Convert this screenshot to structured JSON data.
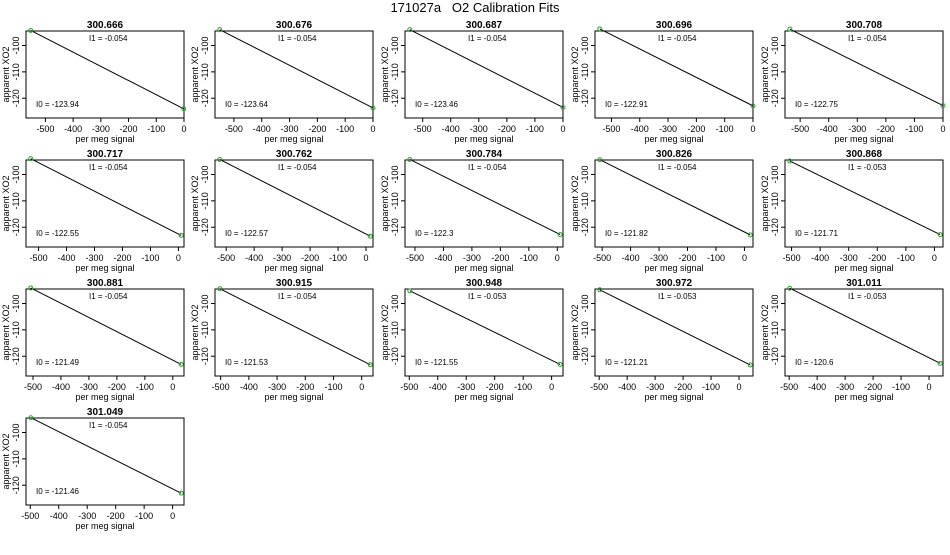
{
  "title": "171027a   O2 Calibration Fits",
  "xlabel": "per meg signal",
  "ylabel": "apparent XO2",
  "i0_prefix": "I0 =  ",
  "i1_prefix": "I1 =  ",
  "colors": {
    "line": "#000000",
    "point": "#2ca02c",
    "axis": "#000000"
  },
  "chart_data": [
    {
      "type": "scatter",
      "title": "300.666",
      "xlim": [
        -570,
        0
      ],
      "xticks": [
        -500,
        -400,
        -300,
        -200,
        -100,
        0
      ],
      "ylim": [
        -127.5,
        -94.5
      ],
      "yticks": [
        -100,
        -110,
        -120
      ],
      "i1": "-0.054",
      "i0": "-123.94",
      "points": [
        {
          "x": -553,
          "y": -94.3
        },
        {
          "x": -1,
          "y": -124.0
        }
      ]
    },
    {
      "type": "scatter",
      "title": "300.676",
      "xlim": [
        -568,
        0
      ],
      "xticks": [
        -500,
        -400,
        -300,
        -200,
        -100,
        0
      ],
      "ylim": [
        -127.5,
        -94.5
      ],
      "yticks": [
        -100,
        -110,
        -120
      ],
      "i1": "-0.054",
      "i0": "-123.64",
      "points": [
        {
          "x": -551,
          "y": -94.0
        },
        {
          "x": 0,
          "y": -123.7
        }
      ]
    },
    {
      "type": "scatter",
      "title": "300.687",
      "xlim": [
        -563,
        0
      ],
      "xticks": [
        -500,
        -400,
        -300,
        -200,
        -100,
        0
      ],
      "ylim": [
        -127.5,
        -94.5
      ],
      "yticks": [
        -100,
        -110,
        -120
      ],
      "i1": "-0.054",
      "i0": "-123.46",
      "points": [
        {
          "x": -546,
          "y": -94.0
        },
        {
          "x": 0,
          "y": -123.5
        }
      ]
    },
    {
      "type": "scatter",
      "title": "300.696",
      "xlim": [
        -558,
        0
      ],
      "xticks": [
        -500,
        -400,
        -300,
        -200,
        -100,
        0
      ],
      "ylim": [
        -127.5,
        -94.5
      ],
      "yticks": [
        -100,
        -110,
        -120
      ],
      "i1": "-0.054",
      "i0": "-122.91",
      "points": [
        {
          "x": -541,
          "y": -93.7
        },
        {
          "x": 0,
          "y": -122.9
        }
      ]
    },
    {
      "type": "scatter",
      "title": "300.708",
      "xlim": [
        -553,
        0
      ],
      "xticks": [
        -500,
        -400,
        -300,
        -200,
        -100,
        0
      ],
      "ylim": [
        -127.5,
        -94.5
      ],
      "yticks": [
        -100,
        -110,
        -120
      ],
      "i1": "-0.054",
      "i0": "-122.75",
      "points": [
        {
          "x": -536,
          "y": -93.8
        },
        {
          "x": 0,
          "y": -122.8
        }
      ]
    },
    {
      "type": "scatter",
      "title": "300.717",
      "xlim": [
        -545,
        20
      ],
      "xticks": [
        -500,
        -400,
        -300,
        -200,
        -100,
        0
      ],
      "ylim": [
        -127.5,
        -94.5
      ],
      "yticks": [
        -100,
        -110,
        -120
      ],
      "i1": "-0.054",
      "i0": "-122.55",
      "points": [
        {
          "x": -528,
          "y": -94.0
        },
        {
          "x": 10,
          "y": -123.1
        }
      ]
    },
    {
      "type": "scatter",
      "title": "300.762",
      "xlim": [
        -540,
        25
      ],
      "xticks": [
        -500,
        -400,
        -300,
        -200,
        -100,
        0
      ],
      "ylim": [
        -127.5,
        -94.5
      ],
      "yticks": [
        -100,
        -110,
        -120
      ],
      "i1": "-0.054",
      "i0": "-122.57",
      "points": [
        {
          "x": -523,
          "y": -94.3
        },
        {
          "x": 15,
          "y": -123.4
        }
      ]
    },
    {
      "type": "scatter",
      "title": "300.784",
      "xlim": [
        -535,
        20
      ],
      "xticks": [
        -500,
        -400,
        -300,
        -200,
        -100,
        0
      ],
      "ylim": [
        -127.5,
        -94.5
      ],
      "yticks": [
        -100,
        -110,
        -120
      ],
      "i1": "-0.054",
      "i0": "-122.3",
      "points": [
        {
          "x": -518,
          "y": -94.3
        },
        {
          "x": 10,
          "y": -122.8
        }
      ]
    },
    {
      "type": "scatter",
      "title": "300.826",
      "xlim": [
        -525,
        30
      ],
      "xticks": [
        -500,
        -400,
        -300,
        -200,
        -100,
        0
      ],
      "ylim": [
        -127.5,
        -94.5
      ],
      "yticks": [
        -100,
        -110,
        -120
      ],
      "i1": "-0.054",
      "i0": "-121.82",
      "points": [
        {
          "x": -508,
          "y": -94.4
        },
        {
          "x": 20,
          "y": -122.9
        }
      ]
    },
    {
      "type": "scatter",
      "title": "300.868",
      "xlim": [
        -523,
        30
      ],
      "xticks": [
        -500,
        -400,
        -300,
        -200,
        -100,
        0
      ],
      "ylim": [
        -127.5,
        -94.5
      ],
      "yticks": [
        -100,
        -110,
        -120
      ],
      "i1": "-0.053",
      "i0": "-121.71",
      "points": [
        {
          "x": -506,
          "y": -94.9
        },
        {
          "x": 20,
          "y": -122.8
        }
      ]
    },
    {
      "type": "scatter",
      "title": "300.881",
      "xlim": [
        -525,
        40
      ],
      "xticks": [
        -500,
        -400,
        -300,
        -200,
        -100,
        0
      ],
      "ylim": [
        -127.5,
        -94.5
      ],
      "yticks": [
        -100,
        -110,
        -120
      ],
      "i1": "-0.054",
      "i0": "-121.49",
      "points": [
        {
          "x": -508,
          "y": -94.1
        },
        {
          "x": 30,
          "y": -123.1
        }
      ]
    },
    {
      "type": "scatter",
      "title": "300.915",
      "xlim": [
        -520,
        40
      ],
      "xticks": [
        -500,
        -400,
        -300,
        -200,
        -100,
        0
      ],
      "ylim": [
        -127.5,
        -94.5
      ],
      "yticks": [
        -100,
        -110,
        -120
      ],
      "i1": "-0.054",
      "i0": "-121.53",
      "points": [
        {
          "x": -503,
          "y": -94.4
        },
        {
          "x": 30,
          "y": -123.2
        }
      ]
    },
    {
      "type": "scatter",
      "title": "300.948",
      "xlim": [
        -515,
        40
      ],
      "xticks": [
        -500,
        -400,
        -300,
        -200,
        -100,
        0
      ],
      "ylim": [
        -127.5,
        -94.5
      ],
      "yticks": [
        -100,
        -110,
        -120
      ],
      "i1": "-0.053",
      "i0": "-121.55",
      "points": [
        {
          "x": -498,
          "y": -95.2
        },
        {
          "x": 30,
          "y": -123.1
        }
      ]
    },
    {
      "type": "scatter",
      "title": "300.972",
      "xlim": [
        -515,
        50
      ],
      "xticks": [
        -500,
        -400,
        -300,
        -200,
        -100,
        0
      ],
      "ylim": [
        -127.5,
        -94.5
      ],
      "yticks": [
        -100,
        -110,
        -120
      ],
      "i1": "-0.053",
      "i0": "-121.21",
      "points": [
        {
          "x": -498,
          "y": -94.8
        },
        {
          "x": 40,
          "y": -123.3
        }
      ]
    },
    {
      "type": "scatter",
      "title": "301.011",
      "xlim": [
        -515,
        50
      ],
      "xticks": [
        -500,
        -400,
        -300,
        -200,
        -100,
        0
      ],
      "ylim": [
        -127.5,
        -94.5
      ],
      "yticks": [
        -100,
        -110,
        -120
      ],
      "i1": "-0.053",
      "i0": "-120.6",
      "points": [
        {
          "x": -498,
          "y": -94.2
        },
        {
          "x": 40,
          "y": -122.7
        }
      ]
    },
    {
      "type": "scatter",
      "title": "301.049",
      "xlim": [
        -515,
        40
      ],
      "xticks": [
        -500,
        -400,
        -300,
        -200,
        -100,
        0
      ],
      "ylim": [
        -127.5,
        -94.5
      ],
      "yticks": [
        -100,
        -110,
        -120
      ],
      "i1": "-0.054",
      "i0": "-121.46",
      "points": [
        {
          "x": -498,
          "y": -94.4
        },
        {
          "x": 30,
          "y": -123.0
        }
      ]
    }
  ]
}
